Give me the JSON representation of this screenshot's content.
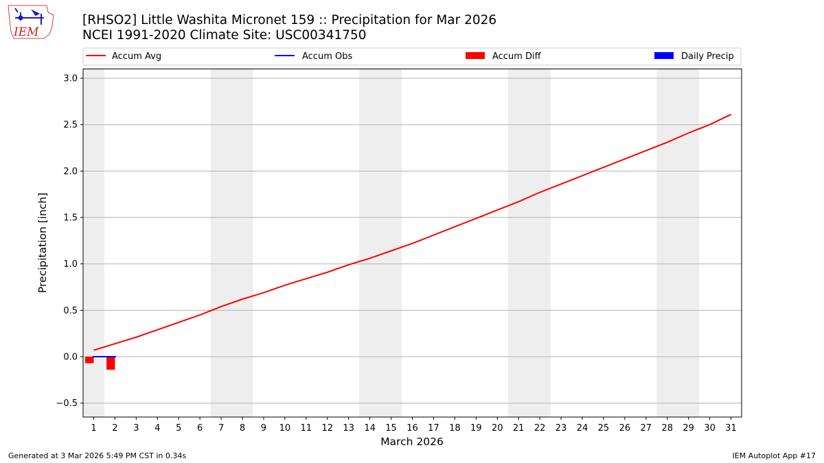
{
  "header": {
    "logo_text": "IEM",
    "title_line1": "[RHSO2] Little Washita Micronet 159 :: Precipitation for Mar 2026",
    "title_line2": "NCEI 1991-2020 Climate Site: USC00341750"
  },
  "footer": {
    "left": "Generated at 3 Mar 2026 5:49 PM CST in 0.34s",
    "right": "IEM Autoplot App #17"
  },
  "colors": {
    "avg": "#ff0000",
    "obs": "#0000ff",
    "diff": "#ff0000",
    "precip": "#0000ff",
    "weekend_band": "#eeeeee",
    "grid": "#b0b0b0"
  },
  "chart_data": {
    "type": "line",
    "title": "[RHSO2] Little Washita Micronet 159 :: Precipitation for Mar 2026",
    "subtitle": "NCEI 1991-2020 Climate Site: USC00341750",
    "xlabel": "March 2026",
    "ylabel": "Precipitation [inch]",
    "xlim": [
      0.5,
      31.5
    ],
    "ylim": [
      -0.65,
      3.1
    ],
    "yticks": [
      -0.5,
      0.0,
      0.5,
      1.0,
      1.5,
      2.0,
      2.5,
      3.0
    ],
    "ytick_labels": [
      "−0.5",
      "0.0",
      "0.5",
      "1.0",
      "1.5",
      "2.0",
      "2.5",
      "3.0"
    ],
    "x": [
      1,
      2,
      3,
      4,
      5,
      6,
      7,
      8,
      9,
      10,
      11,
      12,
      13,
      14,
      15,
      16,
      17,
      18,
      19,
      20,
      21,
      22,
      23,
      24,
      25,
      26,
      27,
      28,
      29,
      30,
      31
    ],
    "grid": "horizontal",
    "legend_placement": "top",
    "weekend_days": [
      1,
      7,
      8,
      14,
      15,
      21,
      22,
      28,
      29
    ],
    "series": [
      {
        "name": "Accum Avg",
        "kind": "line",
        "x": [
          1,
          2,
          3,
          4,
          5,
          6,
          7,
          8,
          9,
          10,
          11,
          12,
          13,
          14,
          15,
          16,
          17,
          18,
          19,
          20,
          21,
          22,
          23,
          24,
          25,
          26,
          27,
          28,
          29,
          30,
          31
        ],
        "values": [
          0.07,
          0.14,
          0.21,
          0.29,
          0.37,
          0.45,
          0.54,
          0.62,
          0.69,
          0.77,
          0.84,
          0.91,
          0.99,
          1.06,
          1.14,
          1.22,
          1.31,
          1.4,
          1.49,
          1.58,
          1.67,
          1.77,
          1.86,
          1.95,
          2.04,
          2.13,
          2.22,
          2.31,
          2.41,
          2.5,
          2.61
        ]
      },
      {
        "name": "Accum Obs",
        "kind": "line",
        "x": [
          1,
          2
        ],
        "values": [
          0.0,
          0.0
        ]
      },
      {
        "name": "Accum Diff",
        "kind": "bar",
        "x": [
          1,
          2
        ],
        "values": [
          -0.07,
          -0.14
        ]
      },
      {
        "name": "Daily Precip",
        "kind": "bar",
        "x": [
          1,
          2
        ],
        "values": [
          0.0,
          0.0
        ]
      }
    ]
  }
}
